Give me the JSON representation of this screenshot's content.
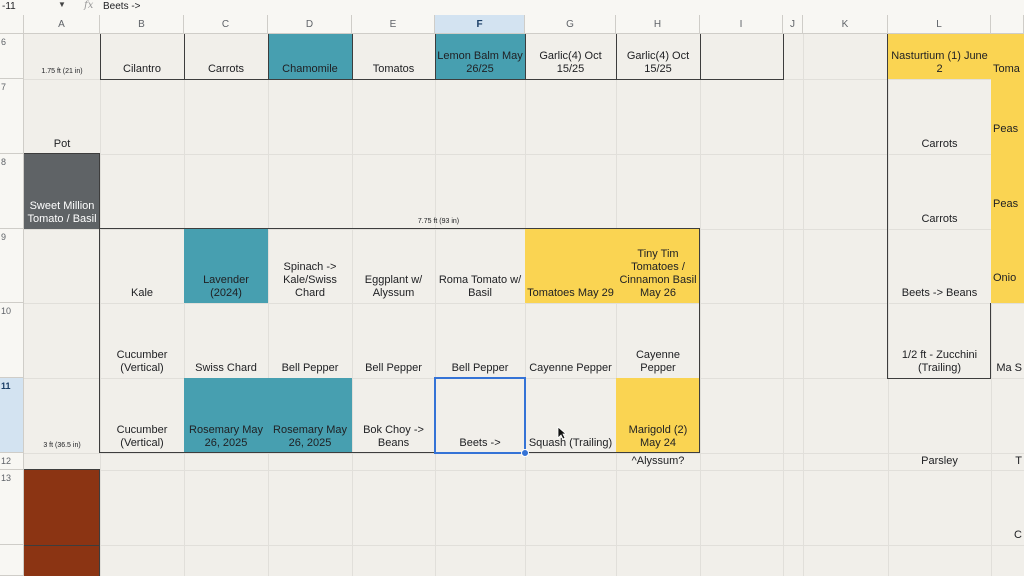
{
  "formula_bar": {
    "cell_ref": "-11",
    "fx": "fx",
    "value": "Beets ->"
  },
  "columns": [
    "A",
    "B",
    "C",
    "D",
    "E",
    "F",
    "G",
    "H",
    "I",
    "J",
    "K",
    "L",
    ""
  ],
  "rows": [
    "6",
    "7",
    "8",
    "9",
    "10",
    "11",
    "12",
    "13",
    ""
  ],
  "cells": {
    "A6": "1.75 ft (21 in)",
    "B6": "Cilantro",
    "C6": "Carrots",
    "D6": "Chamomile",
    "E6": "Tomatos",
    "F6": "Lemon Balm May 26/25",
    "G6": "Garlic(4) Oct 15/25",
    "H6": "Garlic(4) Oct 15/25",
    "L6": "Nasturtium (1) June 2",
    "M6": "Toma",
    "A7": "Pot",
    "L7": "Carrots",
    "M7": "Peas",
    "A8": "Sweet Million Tomato / Basil",
    "F8": "7.75 ft (93 in)",
    "L8": "Carrots",
    "M8": "Peas",
    "B9": "Kale",
    "C9": "Lavender (2024)",
    "D9": "Spinach -> Kale/Swiss Chard",
    "E9": "Eggplant w/ Alyssum",
    "F9": "Roma Tomato w/ Basil",
    "G9": "Tomatoes May 29",
    "H9": "Tiny Tim Tomatoes / Cinnamon Basil May 26",
    "L9": "Beets -> Beans",
    "M9": "Onio",
    "B10": "Cucumber (Vertical)",
    "C10": "Swiss Chard",
    "D10": "Bell Pepper",
    "E10": "Bell Pepper",
    "F10": "Bell Pepper",
    "G10": "Cayenne Pepper",
    "H10": "Cayenne Pepper",
    "L10": "1/2 ft - Zucchini (Trailing)",
    "M10": "Ma S",
    "A11": "3 ft (36.5 in)",
    "B11": "Cucumber (Vertical)",
    "C11": "Rosemary May 26, 2025",
    "D11": "Rosemary May 26, 2025",
    "E11": "Bok Choy -> Beans",
    "F11": "Beets ->",
    "G11": "Squash (Trailing)",
    "H11": "Marigold (2) May 24",
    "H12": "^Alyssum?",
    "L12": "Parsley",
    "M12": "T",
    "M13": "C"
  },
  "colors": {
    "teal": "#479fb0",
    "yellow": "#fad452",
    "gray": "#5f6366",
    "brown": "#8b3413",
    "selection": "#3573d6"
  }
}
